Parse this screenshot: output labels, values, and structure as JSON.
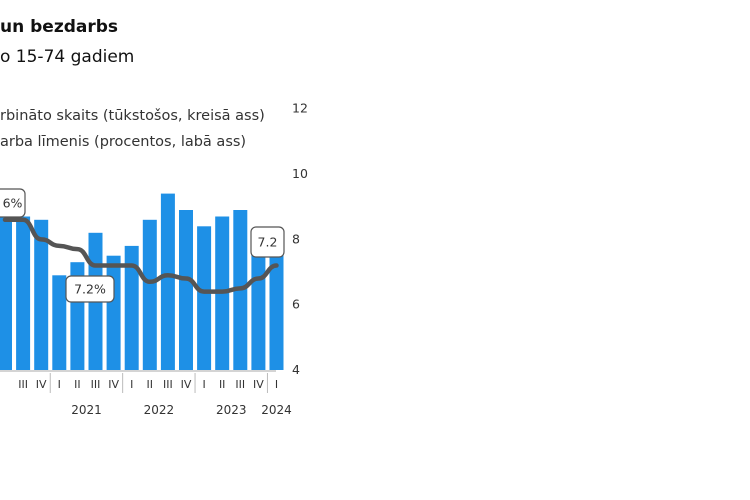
{
  "header": {
    "title": "un bezdarbs",
    "subtitle": "o 15-74 gadiem"
  },
  "legend": {
    "bars_label": "rbināto skaits (tūkstošos, kreisā ass)",
    "line_label": "arba līmenis (procentos, labā ass)"
  },
  "colors": {
    "bars": "#1e90e6",
    "line": "#555555"
  },
  "chart_data": {
    "type": "bar",
    "secondary_type": "line",
    "quarters": [
      "",
      "III",
      "IV",
      "I",
      "II",
      "III",
      "IV",
      "I",
      "II",
      "III",
      "IV",
      "I",
      "II",
      "III",
      "IV",
      "I"
    ],
    "years": [
      {
        "label": "2021",
        "start_index": 3
      },
      {
        "label": "2022",
        "start_index": 7
      },
      {
        "label": "2023",
        "start_index": 11
      },
      {
        "label": "2024",
        "start_index": 15
      }
    ],
    "bars_right_axis_equiv": [
      8.7,
      8.7,
      8.6,
      6.9,
      7.3,
      8.2,
      7.5,
      7.8,
      8.6,
      9.4,
      8.9,
      8.4,
      8.7,
      8.9,
      8.3,
      8.3
    ],
    "line_values": [
      8.6,
      8.6,
      8.0,
      7.8,
      7.7,
      7.2,
      7.2,
      7.2,
      6.7,
      6.9,
      6.8,
      6.4,
      6.4,
      6.5,
      6.8,
      7.2
    ],
    "y_right": {
      "min": 4,
      "max": 12,
      "ticks": [
        "4",
        "6",
        "8",
        "10",
        "12"
      ]
    },
    "annotations": [
      {
        "index": 0,
        "text": "6%"
      },
      {
        "index": 6,
        "text": "7.2%"
      },
      {
        "index": 15,
        "text": "7.2"
      }
    ]
  }
}
